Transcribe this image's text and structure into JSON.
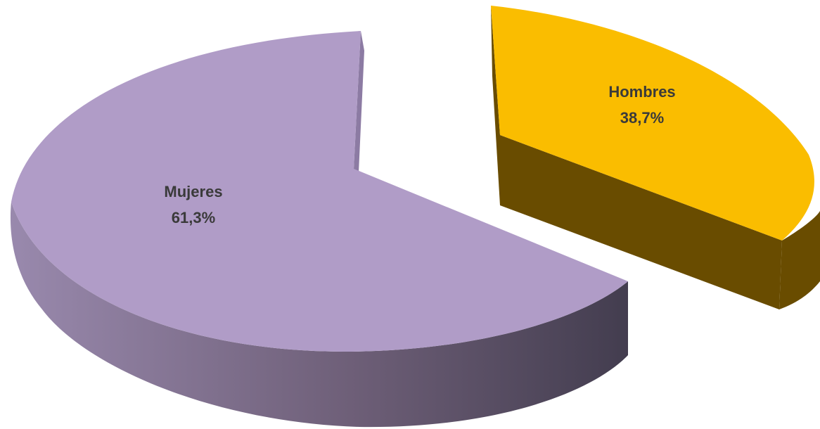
{
  "chart_data": {
    "type": "pie",
    "style": "3d-exploded",
    "title": "",
    "slices": [
      {
        "name": "Mujeres",
        "value": 61.3,
        "percent_label": "61,3%",
        "color": "#b09cc7",
        "side_dark": "#433d4f",
        "side_light": "#9989ad"
      },
      {
        "name": "Hombres",
        "value": 38.7,
        "percent_label": "38,7%",
        "color": "#fabd00",
        "side_dark": "#694c00",
        "side_light": "#694c00"
      }
    ],
    "legend": "none"
  }
}
